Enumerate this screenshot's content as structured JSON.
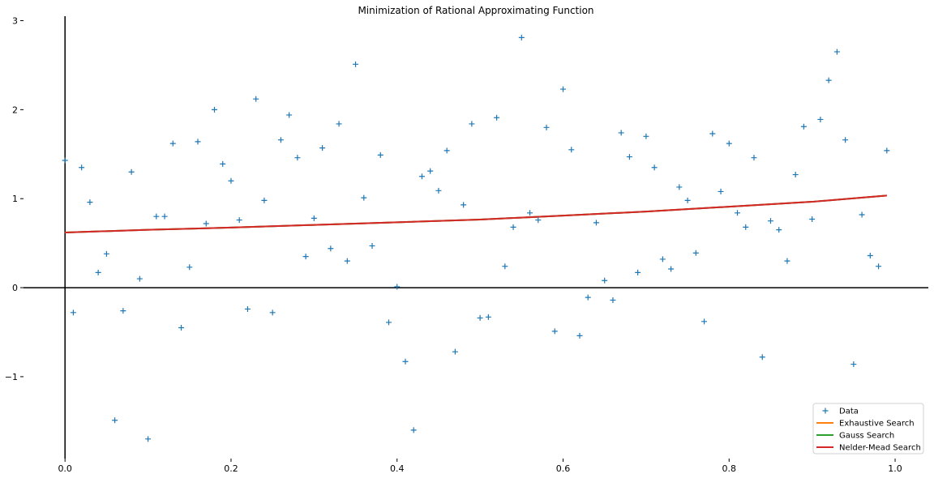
{
  "chart_data": {
    "type": "scatter",
    "title": "Minimization of Rational Approximating Function",
    "xlabel": "",
    "ylabel": "",
    "xlim": [
      -0.05,
      1.04
    ],
    "ylim": [
      -1.92,
      3.05
    ],
    "x_ticks": [
      0.0,
      0.2,
      0.4,
      0.6,
      0.8,
      1.0
    ],
    "x_tick_labels": [
      "0.0",
      "0.2",
      "0.4",
      "0.6",
      "0.8",
      "1.0"
    ],
    "y_ticks": [
      -1,
      0,
      1,
      2,
      3
    ],
    "y_tick_labels": [
      "−1",
      "0",
      "1",
      "2",
      "3"
    ],
    "grid": false,
    "legend_position": "bottom-right",
    "series": [
      {
        "name": "Data",
        "kind": "scatter",
        "marker": "+",
        "color": "#1f77b4",
        "points": [
          [
            0.0,
            1.43
          ],
          [
            0.01,
            -0.28
          ],
          [
            0.02,
            1.35
          ],
          [
            0.03,
            0.96
          ],
          [
            0.04,
            0.17
          ],
          [
            0.05,
            0.38
          ],
          [
            0.06,
            -1.49
          ],
          [
            0.07,
            -0.26
          ],
          [
            0.08,
            1.3
          ],
          [
            0.09,
            0.1
          ],
          [
            0.1,
            -1.7
          ],
          [
            0.11,
            0.8
          ],
          [
            0.12,
            0.8
          ],
          [
            0.13,
            1.62
          ],
          [
            0.14,
            -0.45
          ],
          [
            0.15,
            0.23
          ],
          [
            0.16,
            1.64
          ],
          [
            0.17,
            0.72
          ],
          [
            0.18,
            2.0
          ],
          [
            0.19,
            1.39
          ],
          [
            0.2,
            1.2
          ],
          [
            0.21,
            0.76
          ],
          [
            0.22,
            -0.24
          ],
          [
            0.23,
            2.12
          ],
          [
            0.24,
            0.98
          ],
          [
            0.25,
            -0.28
          ],
          [
            0.26,
            1.66
          ],
          [
            0.27,
            1.94
          ],
          [
            0.28,
            1.46
          ],
          [
            0.29,
            0.35
          ],
          [
            0.3,
            0.78
          ],
          [
            0.31,
            1.57
          ],
          [
            0.32,
            0.44
          ],
          [
            0.33,
            1.84
          ],
          [
            0.34,
            0.3
          ],
          [
            0.35,
            2.51
          ],
          [
            0.36,
            1.01
          ],
          [
            0.37,
            0.47
          ],
          [
            0.38,
            1.49
          ],
          [
            0.39,
            -0.39
          ],
          [
            0.4,
            0.01
          ],
          [
            0.41,
            -0.83
          ],
          [
            0.42,
            -1.6
          ],
          [
            0.43,
            1.25
          ],
          [
            0.44,
            1.31
          ],
          [
            0.45,
            1.09
          ],
          [
            0.46,
            1.54
          ],
          [
            0.47,
            -0.72
          ],
          [
            0.48,
            0.93
          ],
          [
            0.49,
            1.84
          ],
          [
            0.5,
            -0.34
          ],
          [
            0.51,
            -0.33
          ],
          [
            0.52,
            1.91
          ],
          [
            0.53,
            0.24
          ],
          [
            0.54,
            0.68
          ],
          [
            0.55,
            2.81
          ],
          [
            0.56,
            0.84
          ],
          [
            0.57,
            0.76
          ],
          [
            0.58,
            1.8
          ],
          [
            0.59,
            -0.49
          ],
          [
            0.6,
            2.23
          ],
          [
            0.61,
            1.55
          ],
          [
            0.62,
            -0.54
          ],
          [
            0.63,
            -0.11
          ],
          [
            0.64,
            0.73
          ],
          [
            0.65,
            0.08
          ],
          [
            0.66,
            -0.14
          ],
          [
            0.67,
            1.74
          ],
          [
            0.68,
            1.47
          ],
          [
            0.69,
            0.17
          ],
          [
            0.7,
            1.7
          ],
          [
            0.71,
            1.35
          ],
          [
            0.72,
            0.32
          ],
          [
            0.73,
            0.21
          ],
          [
            0.74,
            1.13
          ],
          [
            0.75,
            0.98
          ],
          [
            0.76,
            0.39
          ],
          [
            0.77,
            -0.38
          ],
          [
            0.78,
            1.73
          ],
          [
            0.79,
            1.08
          ],
          [
            0.8,
            1.62
          ],
          [
            0.81,
            0.84
          ],
          [
            0.82,
            0.68
          ],
          [
            0.83,
            1.46
          ],
          [
            0.84,
            -0.78
          ],
          [
            0.85,
            0.75
          ],
          [
            0.86,
            0.65
          ],
          [
            0.87,
            0.3
          ],
          [
            0.88,
            1.27
          ],
          [
            0.89,
            1.81
          ],
          [
            0.9,
            0.77
          ],
          [
            0.91,
            1.89
          ],
          [
            0.92,
            2.33
          ],
          [
            0.93,
            2.65
          ],
          [
            0.94,
            1.66
          ],
          [
            0.95,
            -0.86
          ],
          [
            0.96,
            0.82
          ],
          [
            0.97,
            0.36
          ],
          [
            0.98,
            0.24
          ],
          [
            0.99,
            1.54
          ]
        ]
      },
      {
        "name": "Exhaustive Search",
        "kind": "line",
        "color": "#ff7f0e",
        "points": [
          [
            0.0,
            0.62
          ],
          [
            0.1,
            0.65
          ],
          [
            0.2,
            0.675
          ],
          [
            0.3,
            0.705
          ],
          [
            0.4,
            0.735
          ],
          [
            0.5,
            0.765
          ],
          [
            0.6,
            0.81
          ],
          [
            0.7,
            0.855
          ],
          [
            0.8,
            0.91
          ],
          [
            0.9,
            0.965
          ],
          [
            0.99,
            1.035
          ]
        ]
      },
      {
        "name": "Gauss Search",
        "kind": "line",
        "color": "#2ca02c",
        "points": [
          [
            0.0,
            0.62
          ],
          [
            0.1,
            0.65
          ],
          [
            0.2,
            0.675
          ],
          [
            0.3,
            0.705
          ],
          [
            0.4,
            0.735
          ],
          [
            0.5,
            0.765
          ],
          [
            0.6,
            0.81
          ],
          [
            0.7,
            0.855
          ],
          [
            0.8,
            0.91
          ],
          [
            0.9,
            0.965
          ],
          [
            0.99,
            1.035
          ]
        ]
      },
      {
        "name": "Nelder-Mead Search",
        "kind": "line",
        "color": "#d62728",
        "points": [
          [
            0.0,
            0.62
          ],
          [
            0.1,
            0.65
          ],
          [
            0.2,
            0.675
          ],
          [
            0.3,
            0.705
          ],
          [
            0.4,
            0.735
          ],
          [
            0.5,
            0.765
          ],
          [
            0.6,
            0.81
          ],
          [
            0.7,
            0.855
          ],
          [
            0.8,
            0.91
          ],
          [
            0.9,
            0.965
          ],
          [
            0.99,
            1.035
          ]
        ]
      }
    ]
  }
}
